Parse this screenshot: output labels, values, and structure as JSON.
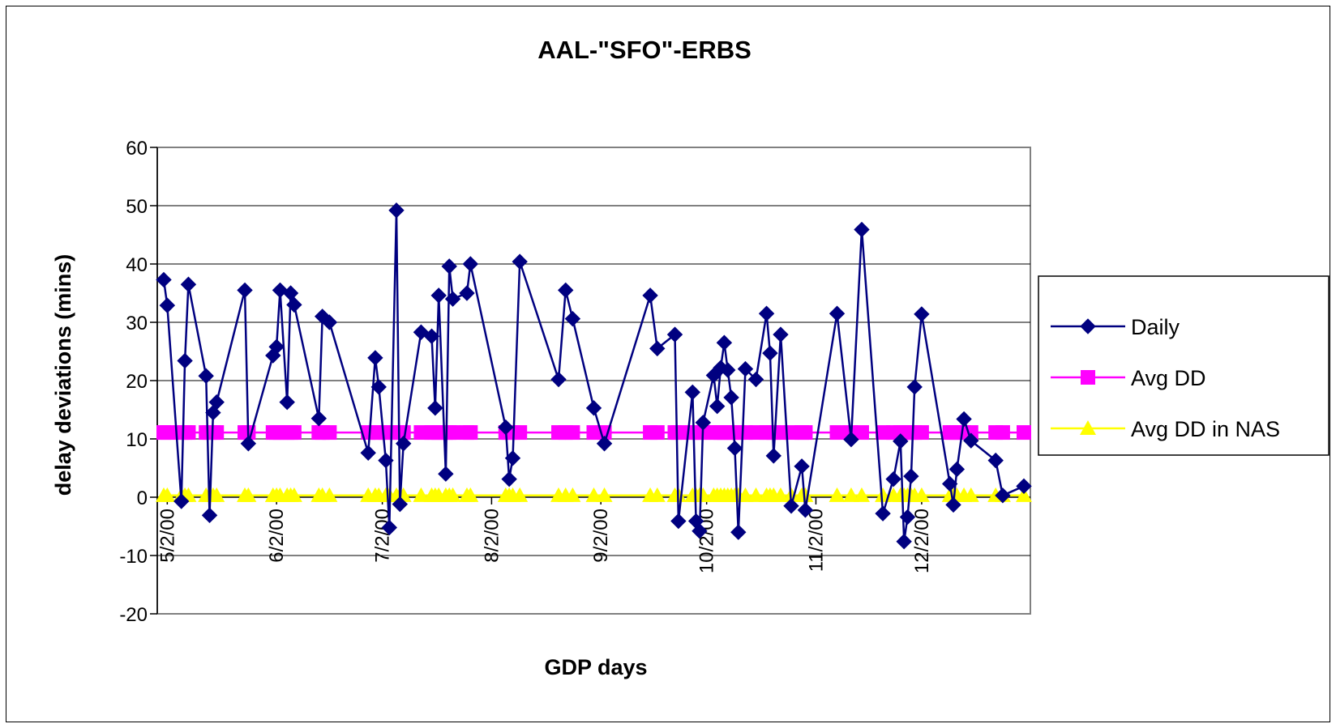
{
  "chart_data": {
    "type": "line",
    "title": "AAL-\"SFO\"-ERBS",
    "xlabel": "GDP days",
    "ylabel": "delay deviations (mins)",
    "x_axis": {
      "type": "date",
      "range": [
        "2000-05-01",
        "2000-12-31"
      ],
      "tick_labels": [
        "5/2/00",
        "6/2/00",
        "7/2/00",
        "8/2/00",
        "9/2/00",
        "10/2/00",
        "11/2/00",
        "12/2/00"
      ],
      "tick_dates": [
        "2000-05-02",
        "2000-06-02",
        "2000-07-02",
        "2000-08-02",
        "2000-09-02",
        "2000-10-02",
        "2000-11-02",
        "2000-12-02"
      ]
    },
    "ylim": [
      -20,
      60
    ],
    "y_ticks": [
      -20,
      -10,
      0,
      10,
      20,
      30,
      40,
      50,
      60
    ],
    "grid": "horizontal",
    "legend": "right",
    "colors": {
      "daily": "#000080",
      "avg_dd": "#ff00ff",
      "avg_dd_nas": "#ffff00"
    },
    "series": [
      {
        "name": "Daily",
        "marker": "diamond",
        "points": [
          [
            "2000-05-01",
            37.3
          ],
          [
            "2000-05-02",
            32.9
          ],
          [
            "2000-05-06",
            -0.7
          ],
          [
            "2000-05-07",
            23.4
          ],
          [
            "2000-05-08",
            36.5
          ],
          [
            "2000-05-13",
            20.8
          ],
          [
            "2000-05-14",
            -3.1
          ],
          [
            "2000-05-15",
            14.5
          ],
          [
            "2000-05-16",
            16.3
          ],
          [
            "2000-05-24",
            35.5
          ],
          [
            "2000-05-25",
            9.2
          ],
          [
            "2000-06-01",
            24.3
          ],
          [
            "2000-06-02",
            25.8
          ],
          [
            "2000-06-03",
            35.5
          ],
          [
            "2000-06-05",
            16.3
          ],
          [
            "2000-06-06",
            35.0
          ],
          [
            "2000-06-07",
            33.0
          ],
          [
            "2000-06-14",
            13.5
          ],
          [
            "2000-06-15",
            31.0
          ],
          [
            "2000-06-17",
            30.0
          ],
          [
            "2000-06-28",
            7.6
          ],
          [
            "2000-06-30",
            23.9
          ],
          [
            "2000-07-01",
            18.9
          ],
          [
            "2000-07-03",
            6.3
          ],
          [
            "2000-07-04",
            -5.2
          ],
          [
            "2000-07-06",
            49.2
          ],
          [
            "2000-07-07",
            -1.2
          ],
          [
            "2000-07-08",
            9.2
          ],
          [
            "2000-07-13",
            28.3
          ],
          [
            "2000-07-16",
            27.6
          ],
          [
            "2000-07-17",
            15.3
          ],
          [
            "2000-07-18",
            34.6
          ],
          [
            "2000-07-20",
            4.0
          ],
          [
            "2000-07-21",
            39.6
          ],
          [
            "2000-07-22",
            34.0
          ],
          [
            "2000-07-26",
            35.0
          ],
          [
            "2000-07-27",
            40.0
          ],
          [
            "2000-08-06",
            12.0
          ],
          [
            "2000-08-07",
            3.1
          ],
          [
            "2000-08-08",
            6.7
          ],
          [
            "2000-08-10",
            40.4
          ],
          [
            "2000-08-21",
            20.2
          ],
          [
            "2000-08-23",
            35.5
          ],
          [
            "2000-08-25",
            30.6
          ],
          [
            "2000-08-31",
            15.3
          ],
          [
            "2000-09-03",
            9.2
          ],
          [
            "2000-09-16",
            34.6
          ],
          [
            "2000-09-18",
            25.5
          ],
          [
            "2000-09-23",
            27.9
          ],
          [
            "2000-09-24",
            -4.1
          ],
          [
            "2000-09-28",
            18.0
          ],
          [
            "2000-09-29",
            -4.1
          ],
          [
            "2000-09-30",
            -5.8
          ],
          [
            "2000-10-01",
            12.8
          ],
          [
            "2000-10-04",
            20.9
          ],
          [
            "2000-10-05",
            15.6
          ],
          [
            "2000-10-06",
            22.2
          ],
          [
            "2000-10-07",
            26.5
          ],
          [
            "2000-10-08",
            21.8
          ],
          [
            "2000-10-09",
            17.1
          ],
          [
            "2000-10-10",
            8.4
          ],
          [
            "2000-10-11",
            -6.0
          ],
          [
            "2000-10-13",
            22.0
          ],
          [
            "2000-10-16",
            20.2
          ],
          [
            "2000-10-19",
            31.5
          ],
          [
            "2000-10-20",
            24.7
          ],
          [
            "2000-10-21",
            7.1
          ],
          [
            "2000-10-23",
            27.9
          ],
          [
            "2000-10-26",
            -1.5
          ],
          [
            "2000-10-29",
            5.3
          ],
          [
            "2000-10-30",
            -2.2
          ],
          [
            "2000-11-08",
            31.5
          ],
          [
            "2000-11-12",
            9.9
          ],
          [
            "2000-11-15",
            45.9
          ],
          [
            "2000-11-21",
            -2.8
          ],
          [
            "2000-11-24",
            3.1
          ],
          [
            "2000-11-26",
            9.6
          ],
          [
            "2000-11-27",
            -7.6
          ],
          [
            "2000-11-28",
            -3.4
          ],
          [
            "2000-11-29",
            3.6
          ],
          [
            "2000-11-30",
            18.9
          ],
          [
            "2000-12-02",
            31.4
          ],
          [
            "2000-12-10",
            2.3
          ],
          [
            "2000-12-11",
            -1.3
          ],
          [
            "2000-12-12",
            4.8
          ],
          [
            "2000-12-14",
            13.4
          ],
          [
            "2000-12-16",
            9.7
          ],
          [
            "2000-12-23",
            6.3
          ],
          [
            "2000-12-25",
            0.3
          ],
          [
            "2000-12-31",
            1.9
          ]
        ]
      },
      {
        "name": "Avg DD",
        "marker": "square",
        "value": 11.1,
        "dates": [
          "2000-05-01",
          "2000-05-02",
          "2000-05-06",
          "2000-05-07",
          "2000-05-08",
          "2000-05-13",
          "2000-05-14",
          "2000-05-15",
          "2000-05-16",
          "2000-05-24",
          "2000-05-25",
          "2000-06-01",
          "2000-06-02",
          "2000-06-03",
          "2000-06-05",
          "2000-06-06",
          "2000-06-07",
          "2000-06-14",
          "2000-06-15",
          "2000-06-17",
          "2000-06-28",
          "2000-06-30",
          "2000-07-01",
          "2000-07-03",
          "2000-07-04",
          "2000-07-06",
          "2000-07-07",
          "2000-07-08",
          "2000-07-13",
          "2000-07-16",
          "2000-07-17",
          "2000-07-18",
          "2000-07-20",
          "2000-07-21",
          "2000-07-22",
          "2000-07-26",
          "2000-07-27",
          "2000-08-06",
          "2000-08-07",
          "2000-08-08",
          "2000-08-10",
          "2000-08-21",
          "2000-08-23",
          "2000-08-25",
          "2000-08-31",
          "2000-09-03",
          "2000-09-16",
          "2000-09-18",
          "2000-09-23",
          "2000-09-24",
          "2000-09-28",
          "2000-09-29",
          "2000-09-30",
          "2000-10-01",
          "2000-10-04",
          "2000-10-05",
          "2000-10-06",
          "2000-10-07",
          "2000-10-08",
          "2000-10-09",
          "2000-10-10",
          "2000-10-11",
          "2000-10-13",
          "2000-10-16",
          "2000-10-19",
          "2000-10-20",
          "2000-10-21",
          "2000-10-23",
          "2000-10-26",
          "2000-10-29",
          "2000-10-30",
          "2000-11-08",
          "2000-11-12",
          "2000-11-15",
          "2000-11-21",
          "2000-11-24",
          "2000-11-26",
          "2000-11-27",
          "2000-11-28",
          "2000-11-29",
          "2000-11-30",
          "2000-12-02",
          "2000-12-10",
          "2000-12-11",
          "2000-12-12",
          "2000-12-14",
          "2000-12-16",
          "2000-12-23",
          "2000-12-25",
          "2000-12-31"
        ]
      },
      {
        "name": "Avg DD in NAS",
        "marker": "triangle",
        "value": 0.3,
        "dates": [
          "2000-05-01",
          "2000-05-02",
          "2000-05-06",
          "2000-05-07",
          "2000-05-08",
          "2000-05-13",
          "2000-05-14",
          "2000-05-15",
          "2000-05-16",
          "2000-05-24",
          "2000-05-25",
          "2000-06-01",
          "2000-06-02",
          "2000-06-03",
          "2000-06-05",
          "2000-06-06",
          "2000-06-07",
          "2000-06-14",
          "2000-06-15",
          "2000-06-17",
          "2000-06-28",
          "2000-06-30",
          "2000-07-01",
          "2000-07-03",
          "2000-07-04",
          "2000-07-06",
          "2000-07-07",
          "2000-07-08",
          "2000-07-13",
          "2000-07-16",
          "2000-07-17",
          "2000-07-18",
          "2000-07-20",
          "2000-07-21",
          "2000-07-22",
          "2000-07-26",
          "2000-07-27",
          "2000-08-06",
          "2000-08-07",
          "2000-08-08",
          "2000-08-10",
          "2000-08-21",
          "2000-08-23",
          "2000-08-25",
          "2000-08-31",
          "2000-09-03",
          "2000-09-16",
          "2000-09-18",
          "2000-09-23",
          "2000-09-24",
          "2000-09-28",
          "2000-09-29",
          "2000-09-30",
          "2000-10-01",
          "2000-10-04",
          "2000-10-05",
          "2000-10-06",
          "2000-10-07",
          "2000-10-08",
          "2000-10-09",
          "2000-10-10",
          "2000-10-11",
          "2000-10-13",
          "2000-10-16",
          "2000-10-19",
          "2000-10-20",
          "2000-10-21",
          "2000-10-23",
          "2000-10-26",
          "2000-10-29",
          "2000-10-30",
          "2000-11-08",
          "2000-11-12",
          "2000-11-15",
          "2000-11-21",
          "2000-11-24",
          "2000-11-26",
          "2000-11-27",
          "2000-11-28",
          "2000-11-29",
          "2000-11-30",
          "2000-12-02",
          "2000-12-10",
          "2000-12-11",
          "2000-12-12",
          "2000-12-14",
          "2000-12-16",
          "2000-12-23",
          "2000-12-25",
          "2000-12-31"
        ]
      }
    ]
  }
}
